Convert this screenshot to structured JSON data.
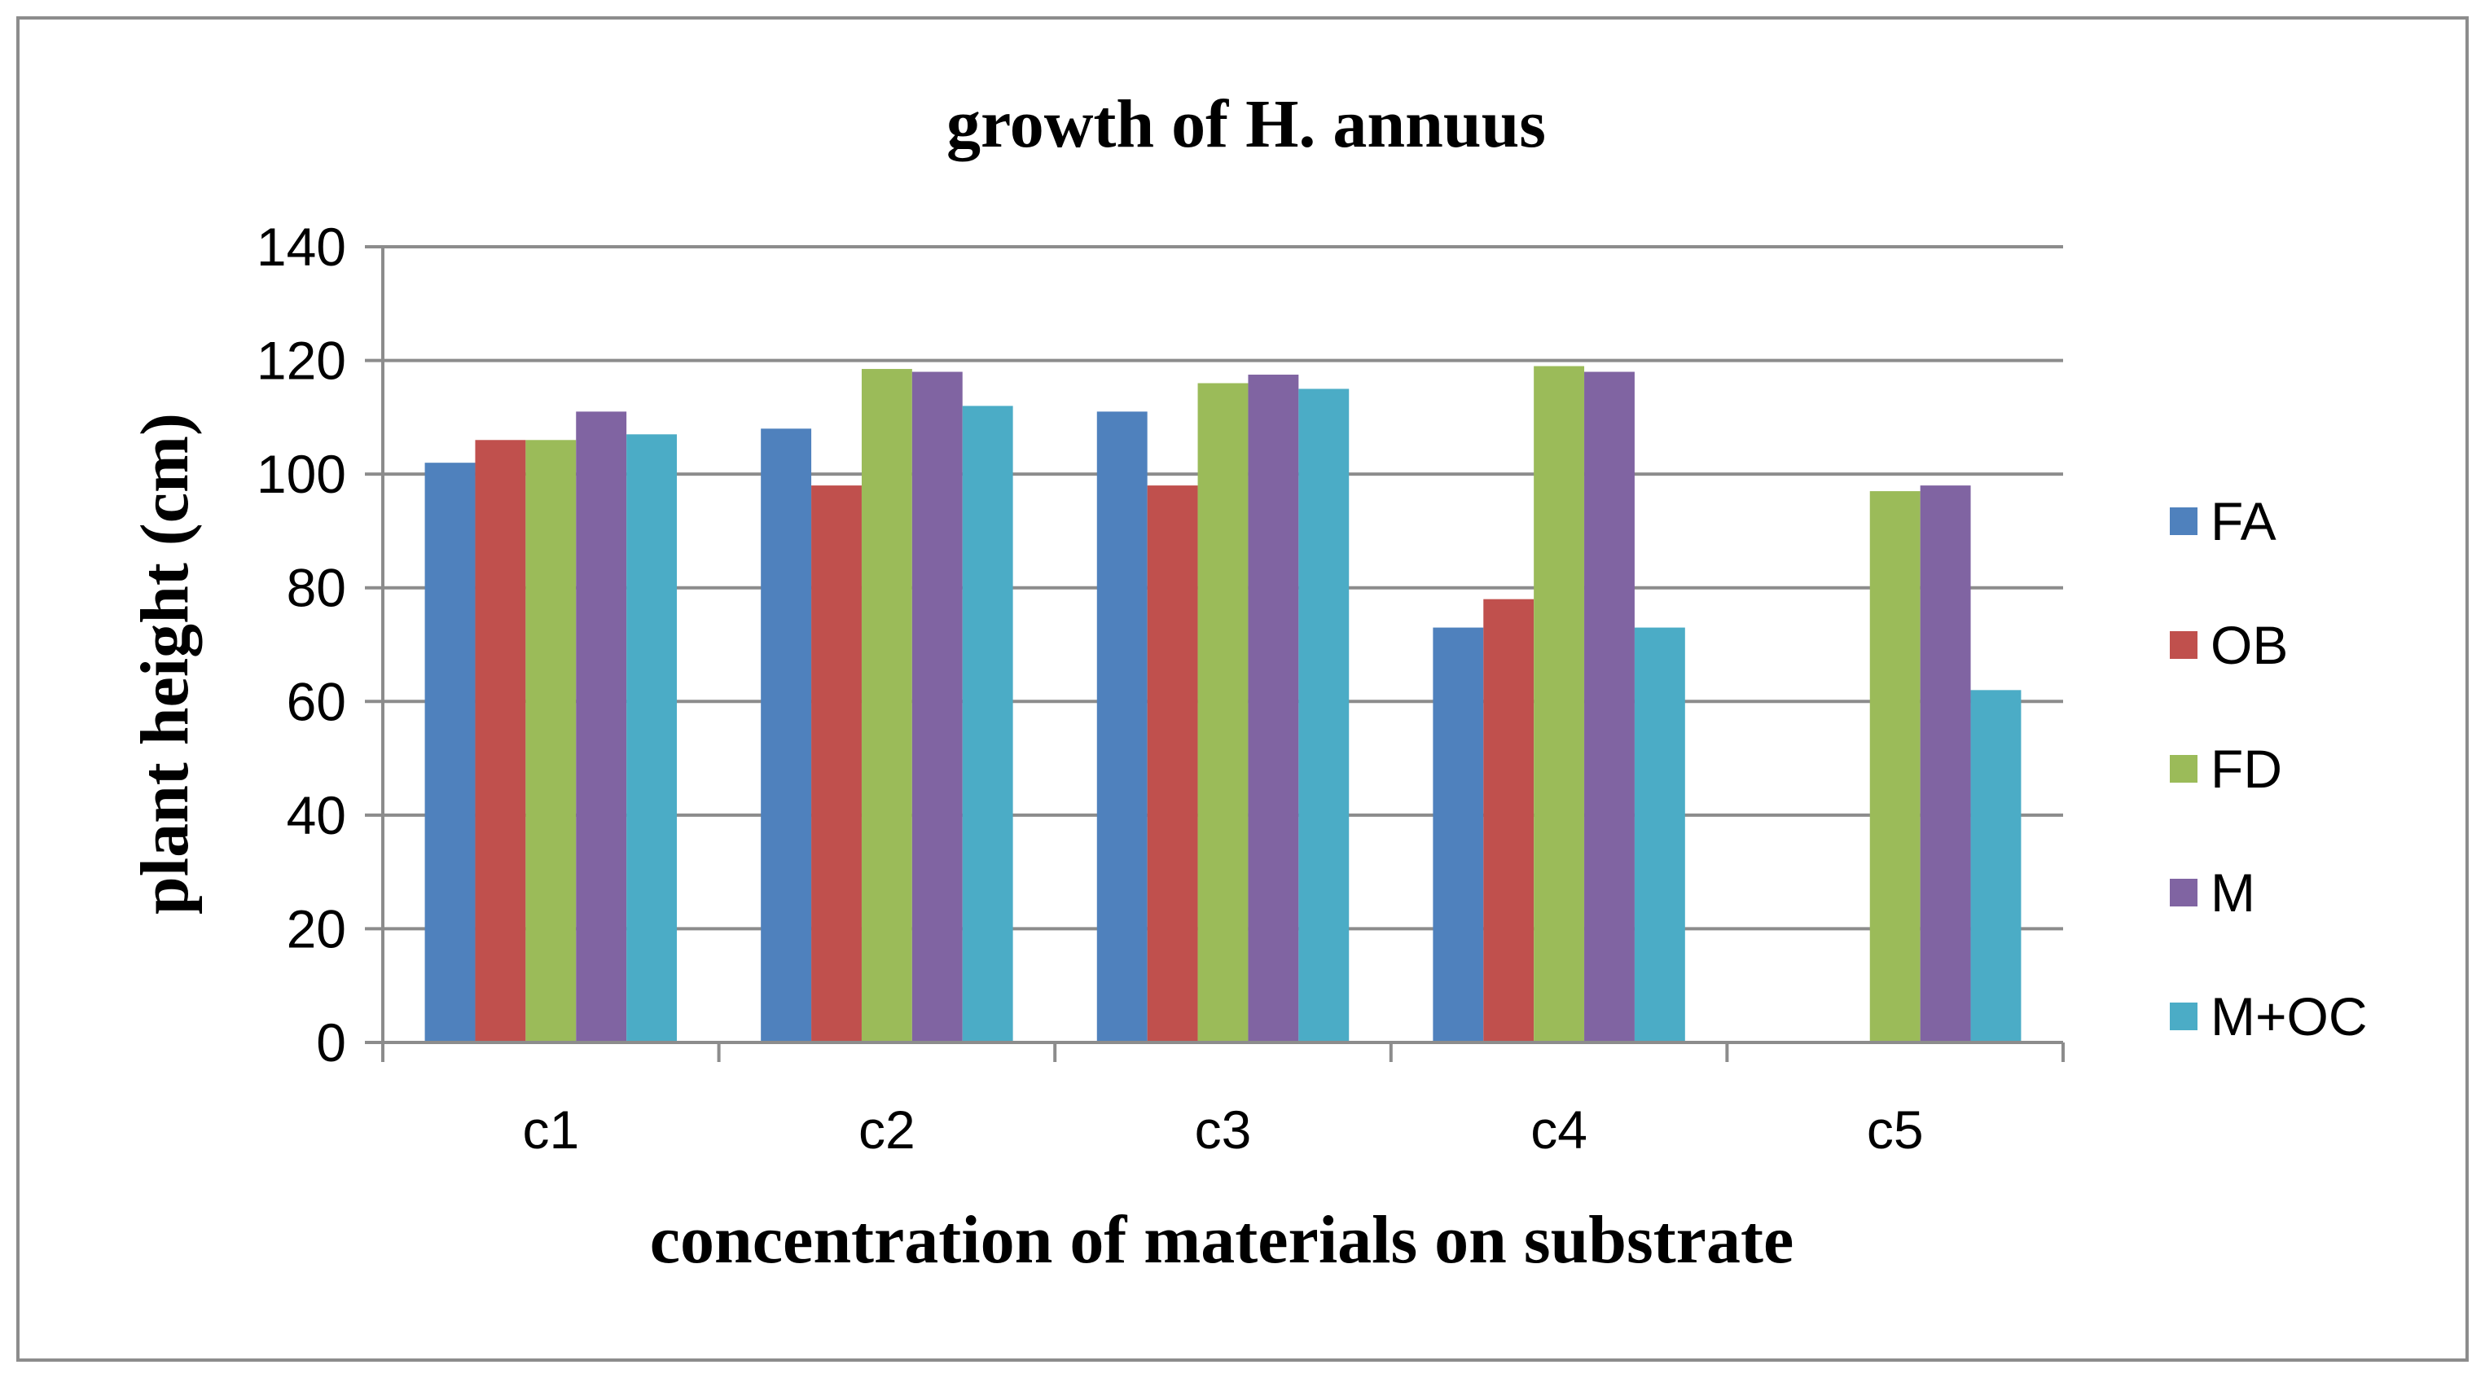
{
  "chart_data": {
    "type": "bar",
    "title": "growth of H. annuus",
    "xlabel": "concentration of materials on substrate",
    "ylabel": "plant height (cm)",
    "categories": [
      "c1",
      "c2",
      "c3",
      "c4",
      "c5"
    ],
    "ylim": [
      0,
      140
    ],
    "yticks": [
      0,
      20,
      40,
      60,
      80,
      100,
      120,
      140
    ],
    "grid": true,
    "legend_position": "right",
    "series": [
      {
        "name": "FA",
        "color": "#4F81BD",
        "values": [
          102,
          108,
          111,
          73,
          0
        ]
      },
      {
        "name": "OB",
        "color": "#C0504D",
        "values": [
          106,
          98,
          98,
          78,
          0
        ]
      },
      {
        "name": "FD",
        "color": "#9BBB59",
        "values": [
          106,
          118.5,
          116,
          119,
          97
        ]
      },
      {
        "name": "M",
        "color": "#8064A2",
        "values": [
          111,
          118,
          117.5,
          118,
          98
        ]
      },
      {
        "name": "M+OC",
        "color": "#4BACC6",
        "values": [
          107,
          112,
          115,
          73,
          62
        ]
      }
    ]
  }
}
